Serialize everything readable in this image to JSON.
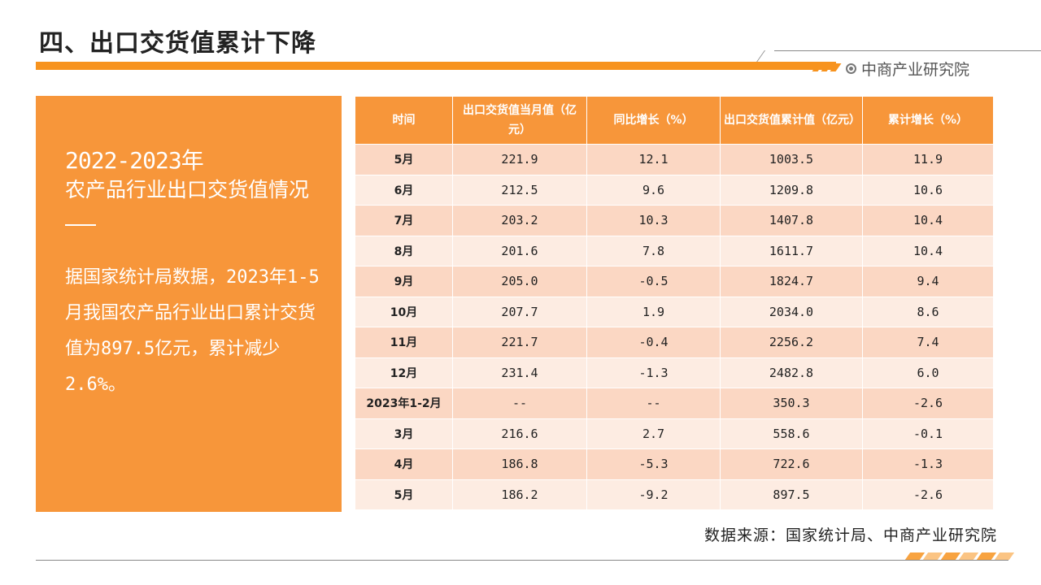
{
  "title": "四、出口交货值累计下降",
  "brand": {
    "name": "中商产业研究院"
  },
  "side": {
    "year": "2022-2023年",
    "subtitle": "农产品行业出口交货值情况",
    "body": "据国家统计局数据，2023年1-5月我国农产品行业出口累计交货值为897.5亿元，累计减少2.6%。"
  },
  "table": {
    "headers": [
      "时间",
      "出口交货值当月值（亿元）",
      "同比增长（%）",
      "出口交货值累计值（亿元）",
      "累计增长（%）"
    ],
    "rows": [
      [
        "5月",
        "221.9",
        "12.1",
        "1003.5",
        "11.9"
      ],
      [
        "6月",
        "212.5",
        "9.6",
        "1209.8",
        "10.6"
      ],
      [
        "7月",
        "203.2",
        "10.3",
        "1407.8",
        "10.4"
      ],
      [
        "8月",
        "201.6",
        "7.8",
        "1611.7",
        "10.4"
      ],
      [
        "9月",
        "205.0",
        "-0.5",
        "1824.7",
        "9.4"
      ],
      [
        "10月",
        "207.7",
        "1.9",
        "2034.0",
        "8.6"
      ],
      [
        "11月",
        "221.7",
        "-0.4",
        "2256.2",
        "7.4"
      ],
      [
        "12月",
        "231.4",
        "-1.3",
        "2482.8",
        "6.0"
      ],
      [
        "2023年1-2月",
        "--",
        "--",
        "350.3",
        "-2.6"
      ],
      [
        "3月",
        "216.6",
        "2.7",
        "558.6",
        "-0.1"
      ],
      [
        "4月",
        "186.8",
        "-5.3",
        "722.6",
        "-1.3"
      ],
      [
        "5月",
        "186.2",
        "-9.2",
        "897.5",
        "-2.6"
      ]
    ]
  },
  "source": "数据来源：国家统计局、中商产业研究院",
  "colors": {
    "accent": "#f7931e",
    "row_odd": "#fbd7c3",
    "row_even": "#fdece2"
  }
}
